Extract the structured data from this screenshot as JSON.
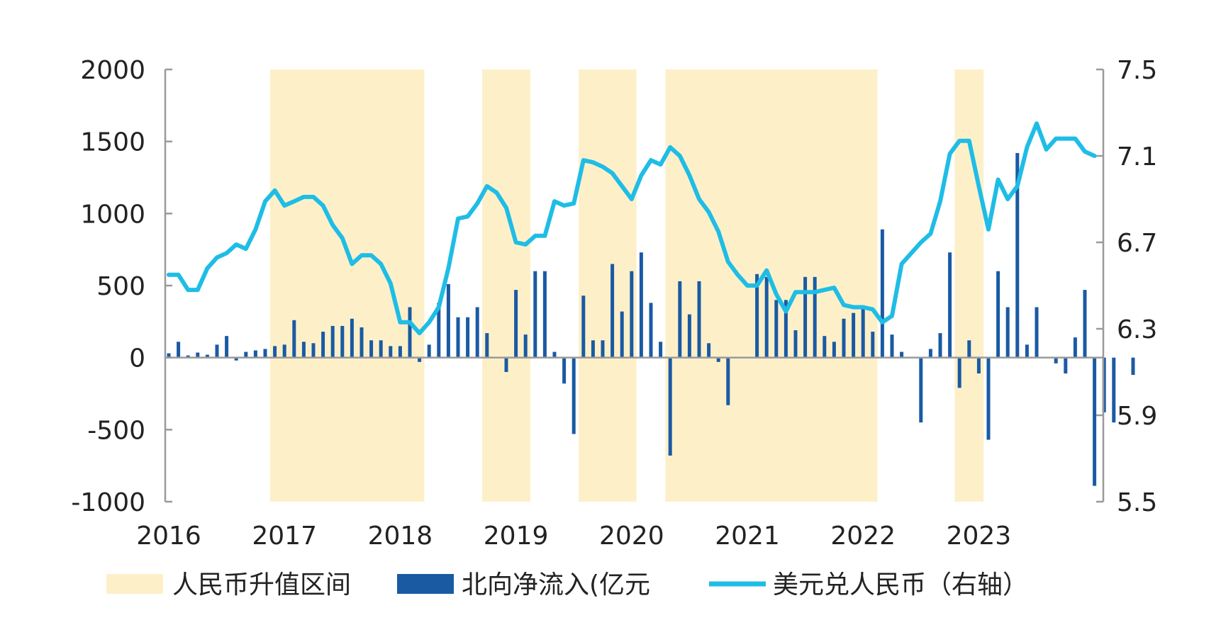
{
  "chart_data": {
    "type": "bar+line",
    "colors": {
      "band": "#fdf0c9",
      "bar": "#1a5aa3",
      "line": "#1fbde6",
      "axis": "#9a9a9a"
    },
    "x_tick_labels": [
      "2016",
      "2017",
      "2018",
      "2019",
      "2020",
      "2021",
      "2022",
      "2023"
    ],
    "y_left": {
      "ticks": [
        "2000",
        "1500",
        "1000",
        "500",
        "0",
        "-500",
        "-1000"
      ],
      "range": [
        -1000,
        2000
      ]
    },
    "y_right": {
      "ticks": [
        "7.5",
        "7.1",
        "6.7",
        "6.3",
        "5.9",
        "5.5"
      ],
      "range": [
        5.5,
        7.5
      ]
    },
    "legend": [
      {
        "label": "人民币升值区间",
        "kind": "band"
      },
      {
        "label": "北向净流入(亿元",
        "kind": "bar"
      },
      {
        "label": "美元兑人民币（右轴）",
        "kind": "line"
      }
    ],
    "appreciation_periods": [
      [
        "2016-12",
        "2018-03"
      ],
      [
        "2018-10",
        "2019-02"
      ],
      [
        "2019-08",
        "2020-01"
      ],
      [
        "2020-05",
        "2022-02"
      ],
      [
        "2022-11",
        "2023-01"
      ]
    ],
    "northbound_net_inflow": {
      "start": "2016-01",
      "values": [
        30,
        110,
        15,
        35,
        20,
        90,
        150,
        -20,
        40,
        50,
        60,
        80,
        90,
        260,
        110,
        100,
        180,
        220,
        220,
        270,
        210,
        120,
        120,
        80,
        80,
        350,
        -30,
        90,
        380,
        510,
        280,
        280,
        350,
        170,
        0,
        -100,
        470,
        160,
        600,
        600,
        40,
        -180,
        -530,
        430,
        120,
        120,
        650,
        320,
        600,
        730,
        380,
        110,
        -680,
        530,
        300,
        530,
        100,
        -30,
        -330,
        0,
        0,
        580,
        560,
        400,
        400,
        190,
        560,
        560,
        150,
        110,
        270,
        310,
        350,
        180,
        890,
        160,
        40,
        0,
        -450,
        60,
        170,
        730,
        -210,
        120,
        -110,
        -570,
        600,
        350,
        1420,
        90,
        350,
        0,
        -40,
        -110,
        140,
        470,
        -890,
        -380,
        -450,
        0,
        -120
      ]
    },
    "usd_cny": {
      "start": "2016-01",
      "values": [
        6.55,
        6.55,
        6.48,
        6.48,
        6.58,
        6.63,
        6.65,
        6.69,
        6.67,
        6.76,
        6.89,
        6.94,
        6.87,
        6.89,
        6.91,
        6.91,
        6.87,
        6.78,
        6.72,
        6.6,
        6.64,
        6.64,
        6.6,
        6.51,
        6.33,
        6.33,
        6.28,
        6.33,
        6.4,
        6.58,
        6.81,
        6.82,
        6.88,
        6.96,
        6.93,
        6.86,
        6.7,
        6.69,
        6.73,
        6.73,
        6.89,
        6.87,
        6.88,
        7.08,
        7.07,
        7.05,
        7.02,
        6.96,
        6.9,
        7.01,
        7.08,
        7.06,
        7.14,
        7.1,
        7.01,
        6.9,
        6.84,
        6.75,
        6.61,
        6.55,
        6.5,
        6.5,
        6.57,
        6.46,
        6.38,
        6.47,
        6.47,
        6.47,
        6.48,
        6.49,
        6.41,
        6.4,
        6.4,
        6.39,
        6.33,
        6.36,
        6.6,
        6.65,
        6.7,
        6.74,
        6.89,
        7.11,
        7.17,
        7.17,
        6.96,
        6.76,
        6.99,
        6.9,
        6.96,
        7.14,
        7.25,
        7.13,
        7.18,
        7.18,
        7.18,
        7.12,
        7.1
      ]
    }
  }
}
